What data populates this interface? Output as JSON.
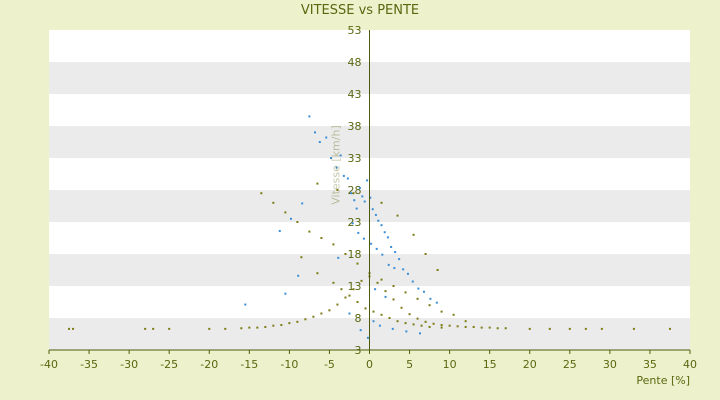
{
  "chart_data": {
    "type": "scatter",
    "title": "VITESSE vs PENTE",
    "xlabel": "Pente [%]",
    "ylabel": "Vitesse [km/h]",
    "xlim": [
      -40,
      40
    ],
    "ylim": [
      3,
      53
    ],
    "x_ticks": [
      "-40",
      "-35",
      "-30",
      "-25",
      "-20",
      "-15",
      "-10",
      "-5",
      "0",
      "5",
      "10",
      "15",
      "20",
      "25",
      "30",
      "35",
      "40"
    ],
    "y_ticks": [
      "53",
      "48",
      "43",
      "38",
      "33",
      "28",
      "23",
      "18",
      "13",
      "8",
      "3"
    ],
    "grid": true,
    "legend": "none",
    "colors": {
      "band": "#ebebeb",
      "axis": "#4d5a0a",
      "series_a": "#3b8ed6",
      "series_b": "#7c7c14",
      "background": "#eef2cc"
    },
    "series": [
      {
        "x": [
          -7.5,
          -6.8,
          -6.2,
          -5.4,
          -4.8,
          -4.1,
          -3.6,
          -3.2,
          -2.7,
          -2.3,
          -1.9,
          -1.6,
          -1.2,
          -0.9,
          -0.6,
          -0.3,
          0.1,
          0.4,
          0.8,
          1.1,
          1.5,
          1.9,
          2.3,
          2.7,
          3.2,
          3.7,
          4.2,
          4.8,
          5.4,
          6.1,
          6.8,
          7.6,
          8.4,
          -11.2,
          -9.8,
          -8.4,
          -2.1,
          -1.4,
          -0.7,
          0.2,
          0.9,
          1.6,
          2.4,
          3.1,
          -15.5,
          -10.5,
          -8.9,
          -3.9,
          0.5,
          1.3,
          2.9,
          4.6,
          6.3,
          -0.2,
          -1.1,
          -2.5,
          0.7,
          2.0
        ],
        "y": [
          39.5,
          37.0,
          35.5,
          36.2,
          33.0,
          31.5,
          33.4,
          30.2,
          29.8,
          27.5,
          26.4,
          25.1,
          28.3,
          27.0,
          26.2,
          29.5,
          26.8,
          25.0,
          24.1,
          23.2,
          22.5,
          21.4,
          20.6,
          19.1,
          18.3,
          17.2,
          15.6,
          14.9,
          13.7,
          12.6,
          12.1,
          11.0,
          10.4,
          21.6,
          23.5,
          25.9,
          22.8,
          21.3,
          20.4,
          19.6,
          18.8,
          17.9,
          16.3,
          15.8,
          10.1,
          11.8,
          14.6,
          17.4,
          7.5,
          6.8,
          6.3,
          5.9,
          5.6,
          4.9,
          6.1,
          8.7,
          12.5,
          11.3
        ]
      },
      {
        "x": [
          -37.5,
          -37.0,
          -28.0,
          -27.0,
          -25.0,
          -20.0,
          -18.0,
          -16.0,
          -15.0,
          -14.0,
          -13.0,
          -12.0,
          -11.0,
          -10.0,
          -9.0,
          -8.0,
          -7.0,
          -6.0,
          -5.0,
          -4.0,
          -3.0,
          -2.0,
          -1.0,
          0.0,
          1.0,
          2.0,
          3.0,
          4.0,
          5.0,
          6.0,
          7.0,
          8.0,
          9.0,
          10.0,
          11.0,
          12.0,
          13.0,
          14.0,
          15.0,
          16.0,
          17.0,
          20.0,
          22.5,
          25.0,
          27.0,
          29.0,
          33.0,
          37.5,
          -13.5,
          -12.0,
          -10.5,
          -9.0,
          -7.5,
          -6.0,
          -4.5,
          -3.0,
          -1.5,
          0.0,
          1.5,
          3.0,
          4.5,
          6.0,
          7.5,
          9.0,
          10.5,
          12.0,
          -6.5,
          -4.0,
          -2.0,
          1.5,
          3.5,
          5.5,
          7.0,
          8.5,
          -8.5,
          -6.5,
          -4.5,
          -3.5,
          -2.5,
          -1.5,
          -0.5,
          0.5,
          1.5,
          2.5,
          3.5,
          4.5,
          5.5,
          6.5,
          7.5,
          9.0
        ],
        "y": [
          6.3,
          6.3,
          6.3,
          6.3,
          6.3,
          6.3,
          6.3,
          6.4,
          6.5,
          6.5,
          6.6,
          6.8,
          6.9,
          7.2,
          7.4,
          7.8,
          8.2,
          8.7,
          9.2,
          10.1,
          11.2,
          12.5,
          13.8,
          14.5,
          13.5,
          12.2,
          10.9,
          9.6,
          8.6,
          7.9,
          7.4,
          7.1,
          6.9,
          6.8,
          6.7,
          6.6,
          6.6,
          6.5,
          6.5,
          6.4,
          6.4,
          6.3,
          6.3,
          6.3,
          6.3,
          6.3,
          6.3,
          6.3,
          27.5,
          26.0,
          24.5,
          23.0,
          21.5,
          20.5,
          19.5,
          18.0,
          16.5,
          15.0,
          14.0,
          13.0,
          12.0,
          11.0,
          10.0,
          9.0,
          8.5,
          7.5,
          29.0,
          28.0,
          27.5,
          26.0,
          24.0,
          21.0,
          18.0,
          15.5,
          17.5,
          15.0,
          13.5,
          12.5,
          11.5,
          10.5,
          9.5,
          9.0,
          8.5,
          8.0,
          7.5,
          7.2,
          7.0,
          6.8,
          6.6,
          6.5
        ]
      }
    ]
  }
}
